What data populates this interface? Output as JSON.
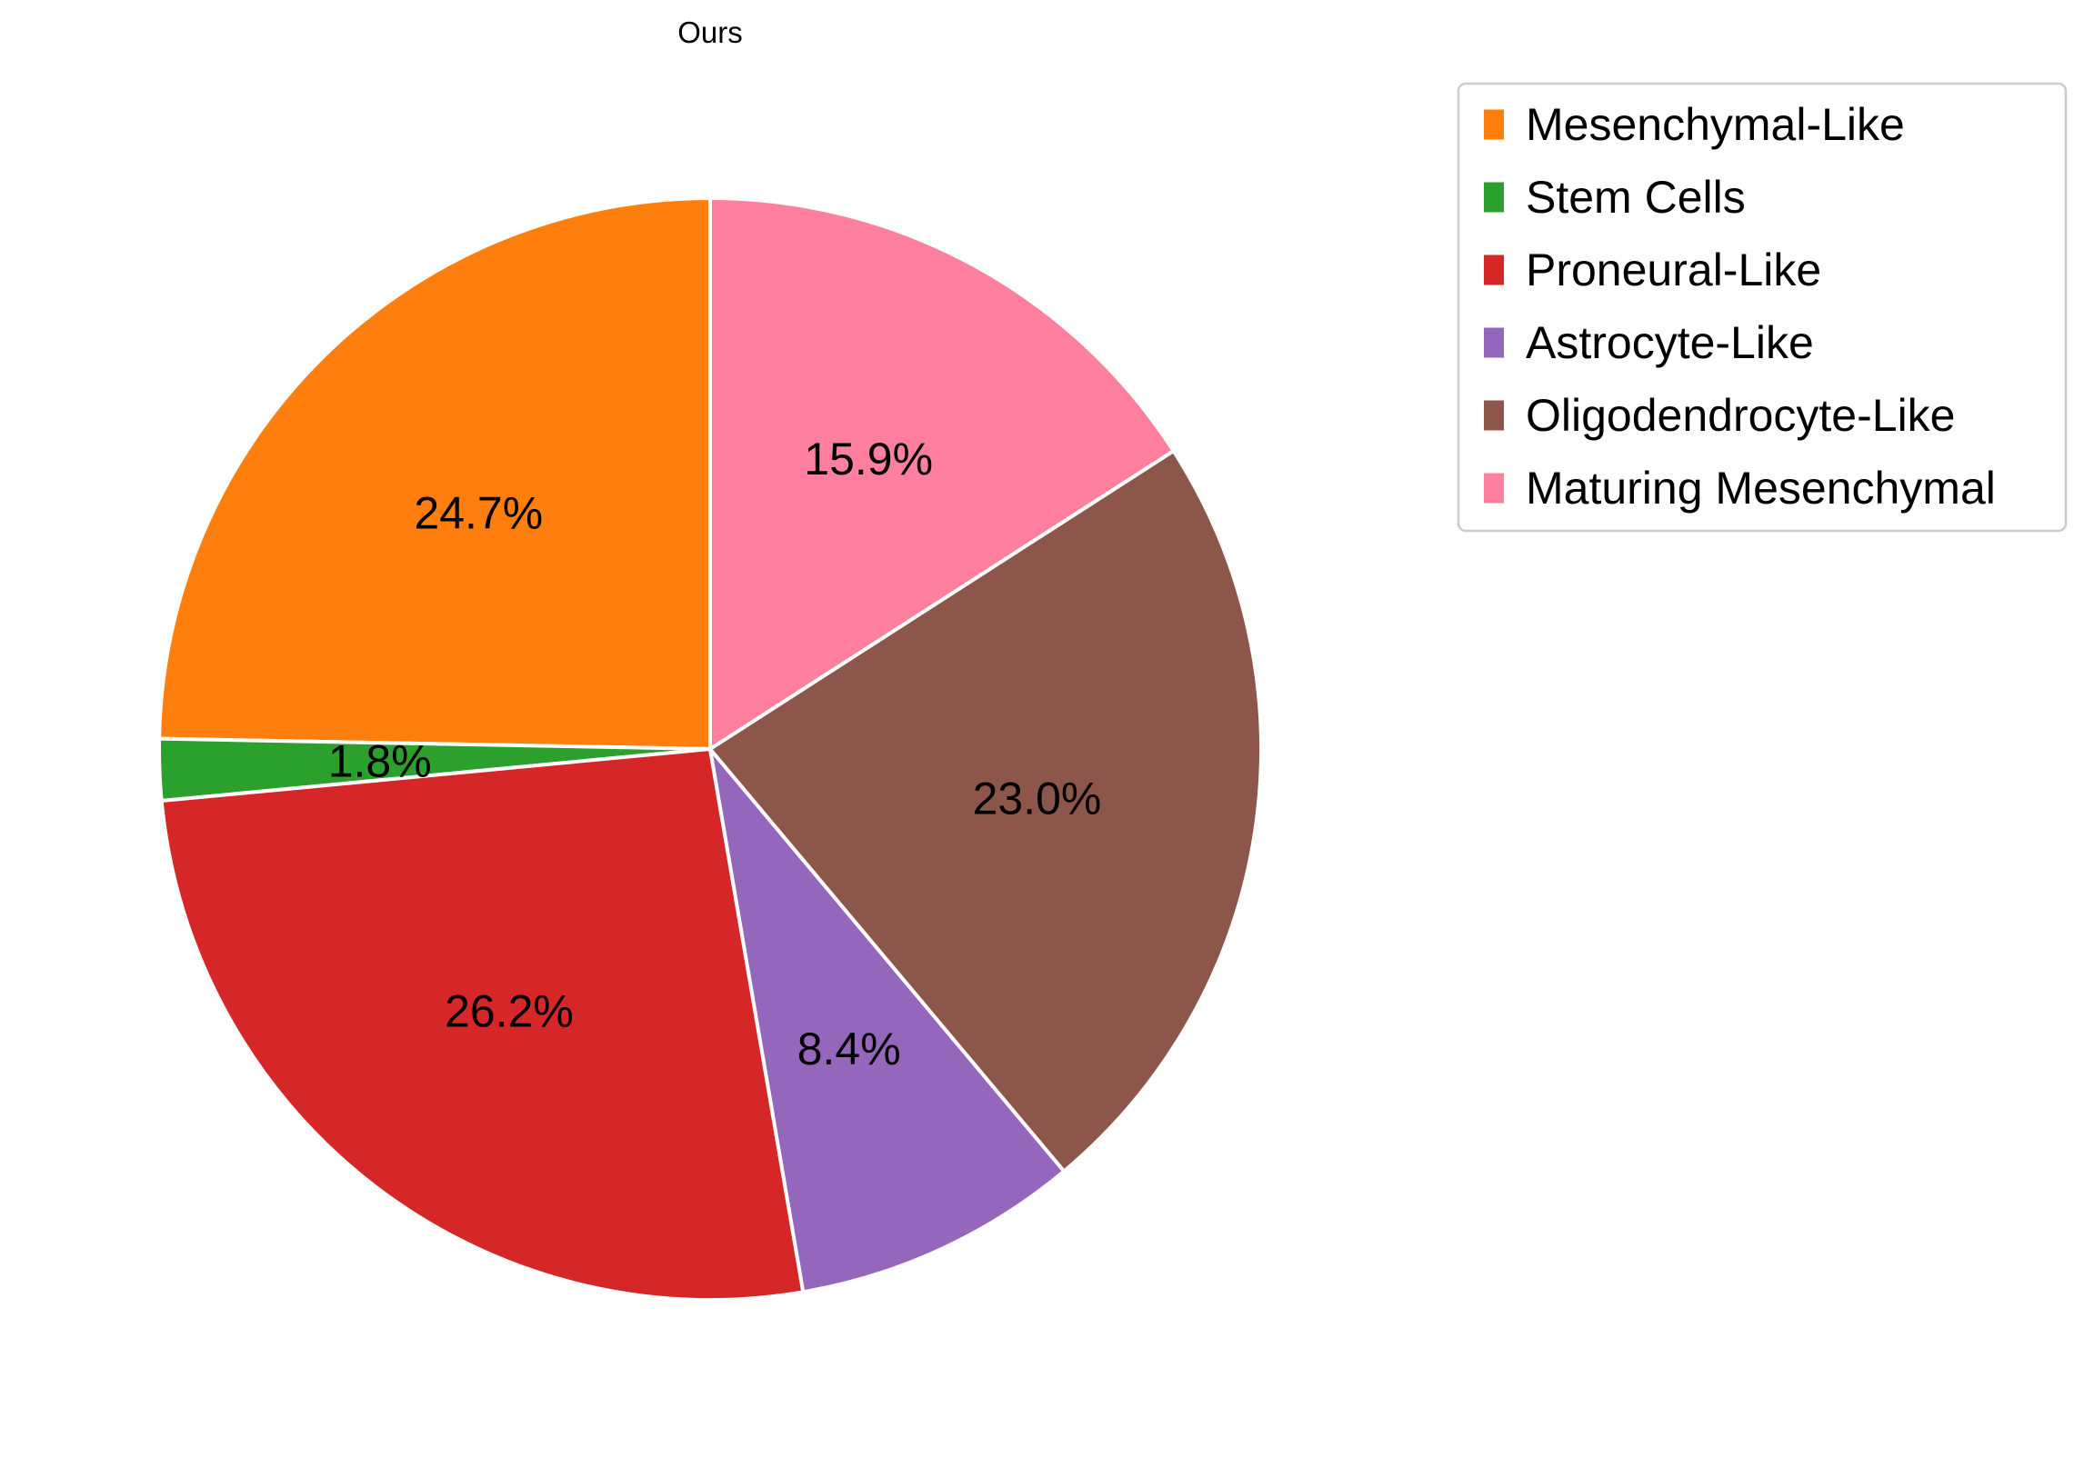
{
  "chart_data": {
    "type": "pie",
    "title": "Ours",
    "slices": [
      {
        "label": "Mesenchymal-Like",
        "value": 24.7,
        "pct_label": "24.7%",
        "color": "#ff7f0e"
      },
      {
        "label": "Stem Cells",
        "value": 1.8,
        "pct_label": "1.8%",
        "color": "#2ca02c"
      },
      {
        "label": "Proneural-Like",
        "value": 26.2,
        "pct_label": "26.2%",
        "color": "#d62728"
      },
      {
        "label": "Astrocyte-Like",
        "value": 8.4,
        "pct_label": "8.4%",
        "color": "#9467bd"
      },
      {
        "label": "Oligodendrocyte-Like",
        "value": 23.0,
        "pct_label": "23.0%",
        "color": "#8c564b"
      },
      {
        "label": "Maturing Mesenchymal",
        "value": 15.9,
        "pct_label": "15.9%",
        "color": "#ff7f9e"
      }
    ],
    "start_angle_deg": 90,
    "direction": "counterclockwise",
    "legend_position": "top-right"
  }
}
